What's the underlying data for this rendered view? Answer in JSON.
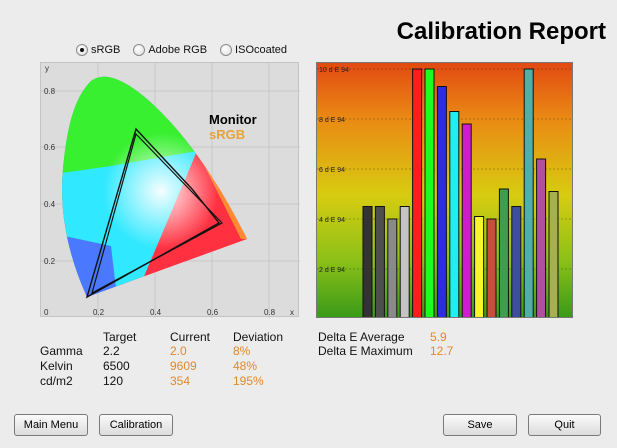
{
  "title": "Calibration Report",
  "color_space_options": [
    {
      "label": "sRGB",
      "checked": true
    },
    {
      "label": "Adobe RGB",
      "checked": false
    },
    {
      "label": "ISOcoated",
      "checked": false
    }
  ],
  "cie_chart": {
    "axis_x_label": "x",
    "axis_y_label": "y",
    "x_ticks": [
      "0.2",
      "0.4",
      "0.6",
      "0.8"
    ],
    "y_ticks": [
      "0.2",
      "0.4",
      "0.6",
      "0.8"
    ],
    "origin_label": "0",
    "legend_monitor": "Monitor",
    "legend_srgb": "sRGB",
    "monitor_color": "#111111",
    "srgb_color": "#e8a23a"
  },
  "chart_data": {
    "type": "bar",
    "y_tick_labels": [
      "2 d E 94",
      "4 d E 94",
      "6 d E 94",
      "8 d E 94",
      "10 d E 94"
    ],
    "ylim": [
      0,
      10
    ],
    "bars": [
      {
        "value": 4.5,
        "color": "#333333"
      },
      {
        "value": 4.5,
        "color": "#4e4e4e"
      },
      {
        "value": 4.0,
        "color": "#8a8a8a"
      },
      {
        "value": 4.5,
        "color": "#c4c4c4"
      },
      {
        "value": 10.0,
        "color": "#ff1c1c"
      },
      {
        "value": 10.0,
        "color": "#1cff1c"
      },
      {
        "value": 9.3,
        "color": "#2d2dde"
      },
      {
        "value": 8.3,
        "color": "#1cf0f0"
      },
      {
        "value": 7.8,
        "color": "#d01cd0"
      },
      {
        "value": 4.1,
        "color": "#f6f62a"
      },
      {
        "value": 4.0,
        "color": "#c84d3d"
      },
      {
        "value": 5.2,
        "color": "#3e9e4e"
      },
      {
        "value": 4.5,
        "color": "#3d4e9e"
      },
      {
        "value": 10.0,
        "color": "#4eb0a6"
      },
      {
        "value": 6.4,
        "color": "#b04ea0"
      },
      {
        "value": 5.1,
        "color": "#a6b04e"
      }
    ]
  },
  "stats": {
    "headers": {
      "target": "Target",
      "current": "Current",
      "deviation": "Deviation"
    },
    "rows": [
      {
        "label": "Gamma",
        "target": "2.2",
        "current": "2.0",
        "deviation": "8%"
      },
      {
        "label": "Kelvin",
        "target": "6500",
        "current": "9609",
        "deviation": "48%"
      },
      {
        "label": "cd/m2",
        "target": "120",
        "current": "354",
        "deviation": "195%"
      }
    ]
  },
  "delta": {
    "average_label": "Delta E Average",
    "average_value": "5.9",
    "maximum_label": "Delta E Maximum",
    "maximum_value": "12.7"
  },
  "buttons": {
    "main_menu": "Main Menu",
    "calibration": "Calibration",
    "save": "Save",
    "quit": "Quit"
  }
}
